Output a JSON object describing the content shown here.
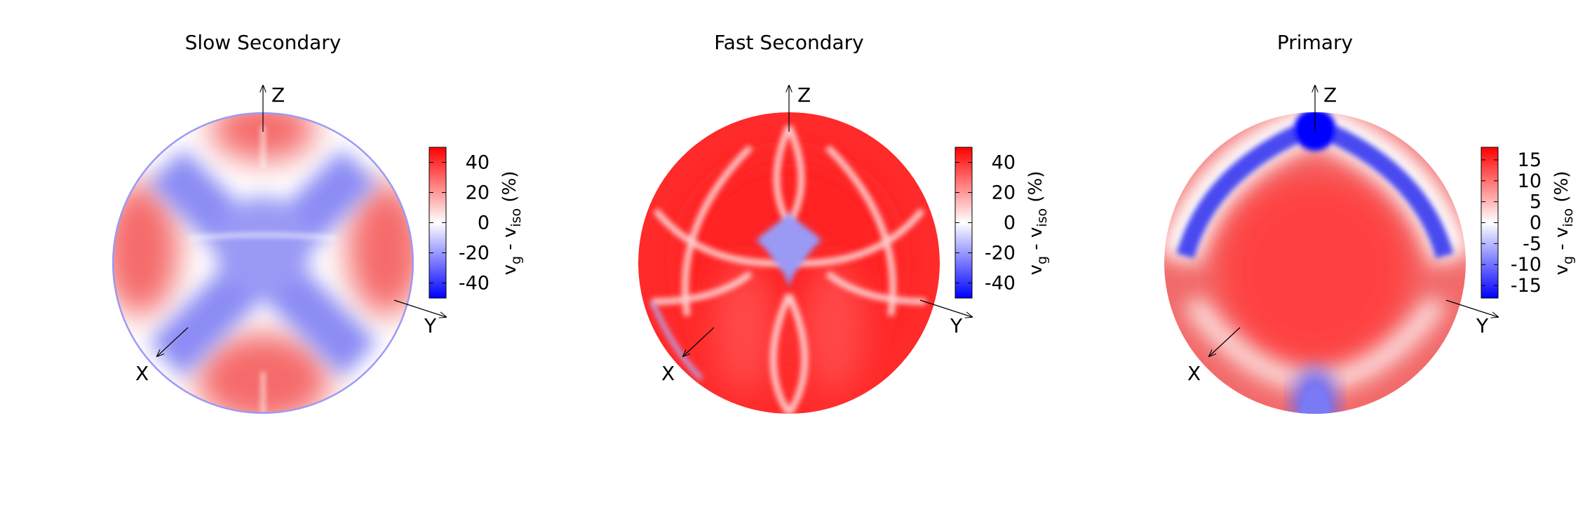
{
  "chart_data": [
    {
      "type": "heatmap",
      "title": "Slow Secondary",
      "axes": [
        "X",
        "Y",
        "Z"
      ],
      "colorbar": {
        "label_main": "v",
        "label_sub1": "g",
        "label_mid": " - v",
        "label_sub2": "iso",
        "label_tail": " (%)",
        "range": [
          -50,
          50
        ],
        "ticks": [
          40,
          20,
          0,
          -20,
          -40
        ],
        "tick_labels": [
          "40",
          "20",
          "0",
          "-20",
          "-40"
        ],
        "colormap": [
          "#0000ff",
          "#ffffff",
          "#ff0000"
        ]
      },
      "pattern": "blue X-shaped cross band through centre, red lobes between arms"
    },
    {
      "type": "heatmap",
      "title": "Fast Secondary",
      "axes": [
        "X",
        "Y",
        "Z"
      ],
      "colorbar": {
        "label_main": "v",
        "label_sub1": "g",
        "label_mid": " - v",
        "label_sub2": "iso",
        "label_tail": " (%)",
        "range": [
          -50,
          50
        ],
        "ticks": [
          40,
          20,
          0,
          -20,
          -40
        ],
        "tick_labels": [
          "40",
          "20",
          "0",
          "-20",
          "-40"
        ],
        "colormap": [
          "#0000ff",
          "#ffffff",
          "#ff0000"
        ]
      },
      "pattern": "mostly red with small blue diamond at centre and white arc lines"
    },
    {
      "type": "heatmap",
      "title": "Primary",
      "axes": [
        "X",
        "Y",
        "Z"
      ],
      "colorbar": {
        "label_main": "v",
        "label_sub1": "g",
        "label_mid": " - v",
        "label_sub2": "iso",
        "label_tail": " (%)",
        "range": [
          -18,
          18
        ],
        "ticks": [
          15,
          10,
          5,
          0,
          -5,
          -10,
          -15
        ],
        "tick_labels": [
          "15",
          "10",
          "5",
          "0",
          "-5",
          "-10",
          "-15"
        ],
        "colormap": [
          "#0000ff",
          "#ffffff",
          "#ff0000"
        ]
      },
      "pattern": "red centre disc, blue arc near top, blue lobe at bottom"
    }
  ]
}
